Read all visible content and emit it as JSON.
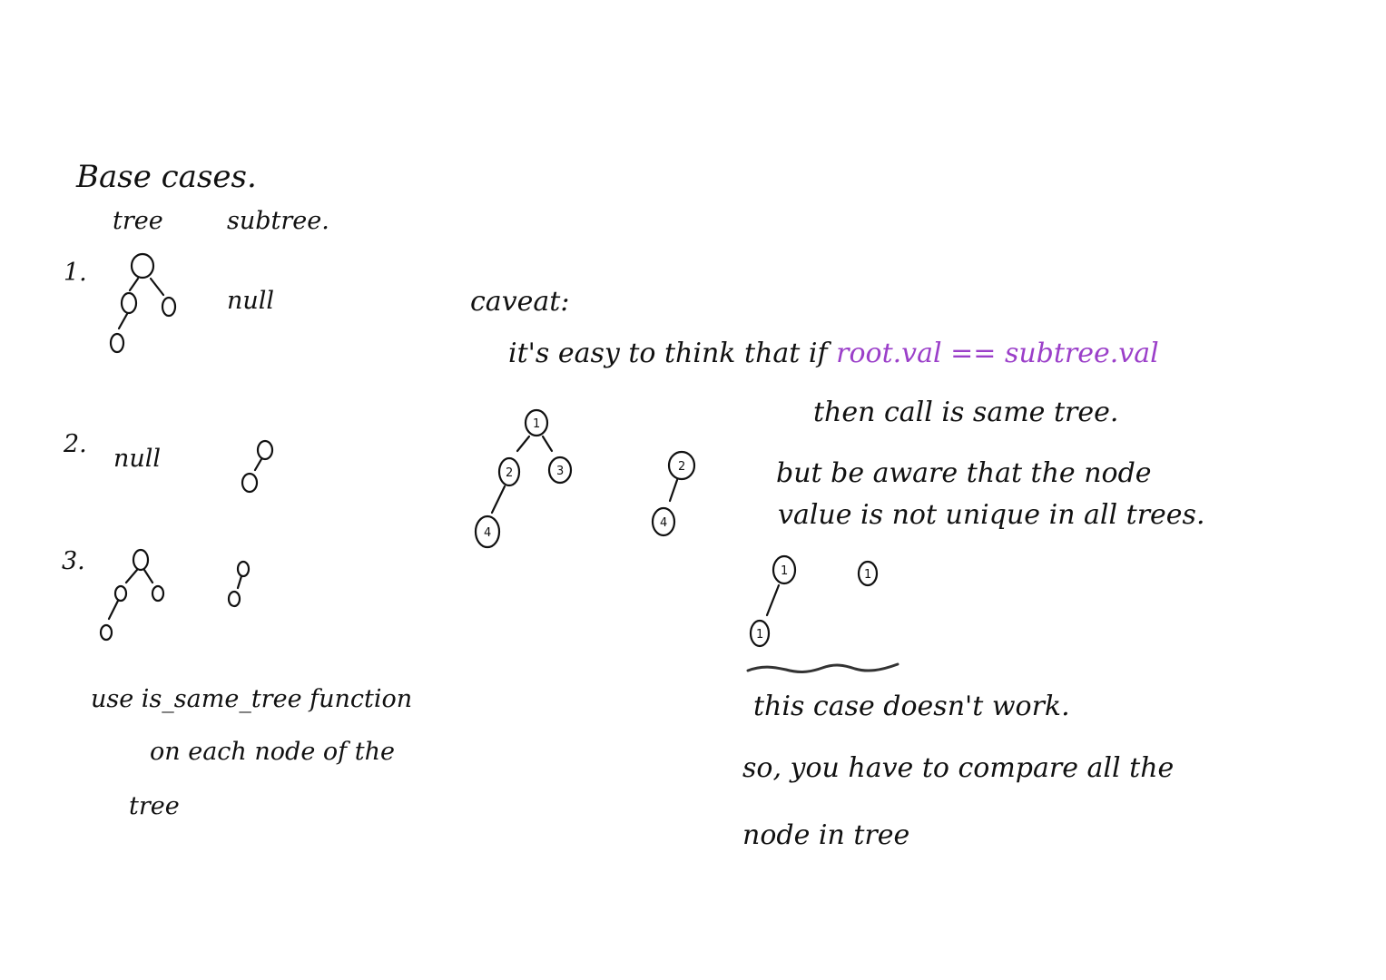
{
  "left": {
    "heading": "Base cases.",
    "col_tree": "tree",
    "col_subtree": "subtree.",
    "case1": {
      "number": "1.",
      "subtree": "null"
    },
    "case2": {
      "number": "2.",
      "tree": "null"
    },
    "case3": {
      "number": "3."
    },
    "note_line1": "use  is_same_tree  function",
    "note_line2": "on each node  of  the",
    "note_line3": "tree"
  },
  "right": {
    "caveat": "caveat:",
    "line1_a": "it's easy to think that if",
    "line1_b": "root.val == subtree.val",
    "line2": "then call is same tree.",
    "line3": "but be aware that the  node",
    "line4": "value is not unique in all  trees.",
    "line5": "this case doesn't work.",
    "line6": "so, you have to compare all the",
    "line7": "node in tree",
    "example_tree_labels": [
      "1",
      "2",
      "3",
      "4"
    ],
    "example_subtree_labels": [
      "2",
      "4"
    ],
    "dup_labels": [
      "1",
      "1",
      "1"
    ]
  },
  "colors": {
    "ink": "#111111",
    "accent": "#9b3fc9"
  }
}
